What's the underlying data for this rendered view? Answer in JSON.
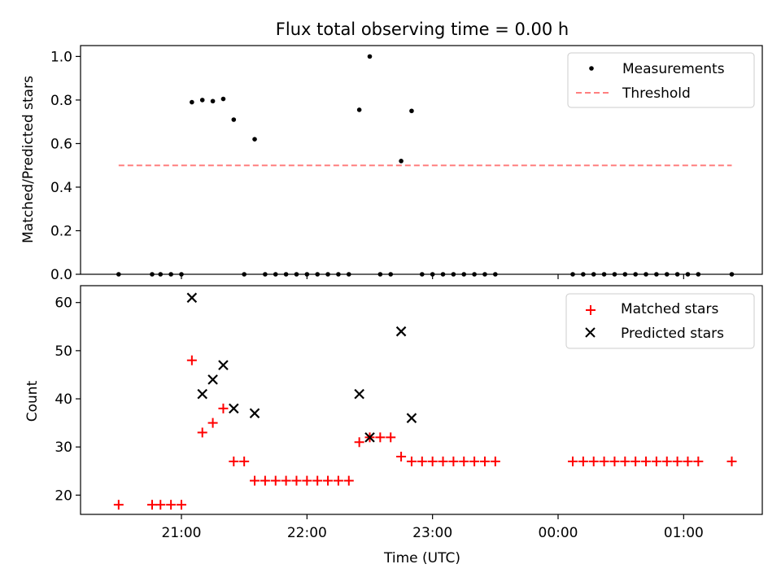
{
  "figure_title": "Flux total observing time = 0.00 h",
  "xlabel": "Time (UTC)",
  "x_tick_labels": [
    "21:00",
    "22:00",
    "23:00",
    "00:00",
    "01:00"
  ],
  "colors": {
    "matched": "#ff0000",
    "predicted": "#000000",
    "measurement": "#000000",
    "threshold": "#ff7f7f"
  },
  "chart_data": [
    {
      "type": "scatter",
      "panel": "top",
      "title": "Flux total observing time = 0.00 h",
      "xlabel": "",
      "ylabel": "Matched/Predicted stars",
      "x_unit": "time of day (UTC), continues past midnight",
      "ylim": [
        0,
        1.05
      ],
      "yticks": [
        "0.0",
        "0.2",
        "0.4",
        "0.6",
        "0.8",
        "1.0"
      ],
      "legend_position": "upper right",
      "legend": [
        "Measurements",
        "Threshold"
      ],
      "series": [
        {
          "name": "Measurements",
          "marker": "dot",
          "points": [
            [
              "20:30",
              0.0
            ],
            [
              "20:46",
              0.0
            ],
            [
              "20:50",
              0.0
            ],
            [
              "20:55",
              0.0
            ],
            [
              "21:00",
              0.0
            ],
            [
              "21:05",
              0.79
            ],
            [
              "21:10",
              0.8
            ],
            [
              "21:15",
              0.795
            ],
            [
              "21:20",
              0.805
            ],
            [
              "21:25",
              0.71
            ],
            [
              "21:30",
              0.0
            ],
            [
              "21:35",
              0.62
            ],
            [
              "21:40",
              0.0
            ],
            [
              "21:45",
              0.0
            ],
            [
              "21:50",
              0.0
            ],
            [
              "21:55",
              0.0
            ],
            [
              "22:00",
              0.0
            ],
            [
              "22:05",
              0.0
            ],
            [
              "22:10",
              0.0
            ],
            [
              "22:15",
              0.0
            ],
            [
              "22:20",
              0.0
            ],
            [
              "22:25",
              0.755
            ],
            [
              "22:30",
              1.0
            ],
            [
              "22:35",
              0.0
            ],
            [
              "22:40",
              0.0
            ],
            [
              "22:45",
              0.52
            ],
            [
              "22:50",
              0.75
            ],
            [
              "22:55",
              0.0
            ],
            [
              "23:00",
              0.0
            ],
            [
              "23:05",
              0.0
            ],
            [
              "23:10",
              0.0
            ],
            [
              "23:15",
              0.0
            ],
            [
              "23:20",
              0.0
            ],
            [
              "23:25",
              0.0
            ],
            [
              "23:30",
              0.0
            ],
            [
              "00:07",
              0.0
            ],
            [
              "00:12",
              0.0
            ],
            [
              "00:17",
              0.0
            ],
            [
              "00:22",
              0.0
            ],
            [
              "00:27",
              0.0
            ],
            [
              "00:32",
              0.0
            ],
            [
              "00:37",
              0.0
            ],
            [
              "00:42",
              0.0
            ],
            [
              "00:47",
              0.0
            ],
            [
              "00:52",
              0.0
            ],
            [
              "00:57",
              0.0
            ],
            [
              "01:02",
              0.0
            ],
            [
              "01:07",
              0.0
            ],
            [
              "01:23",
              0.0
            ]
          ]
        },
        {
          "name": "Threshold",
          "style": "dashed",
          "points": [
            [
              "20:30",
              0.5
            ],
            [
              "01:23",
              0.5
            ]
          ]
        }
      ]
    },
    {
      "type": "scatter",
      "panel": "bottom",
      "xlabel": "Time (UTC)",
      "ylabel": "Count",
      "x_unit": "time of day (UTC), continues past midnight",
      "ylim": [
        16,
        63.5
      ],
      "yticks": [
        "20",
        "30",
        "40",
        "50",
        "60"
      ],
      "legend_position": "upper right",
      "legend": [
        "Matched stars",
        "Predicted stars"
      ],
      "series": [
        {
          "name": "Matched stars",
          "marker": "plus",
          "points": [
            [
              "20:30",
              18
            ],
            [
              "20:46",
              18
            ],
            [
              "20:50",
              18
            ],
            [
              "20:55",
              18
            ],
            [
              "21:00",
              18
            ],
            [
              "21:05",
              48
            ],
            [
              "21:10",
              33
            ],
            [
              "21:15",
              35
            ],
            [
              "21:20",
              38
            ],
            [
              "21:25",
              27
            ],
            [
              "21:30",
              27
            ],
            [
              "21:35",
              23
            ],
            [
              "21:40",
              23
            ],
            [
              "21:45",
              23
            ],
            [
              "21:50",
              23
            ],
            [
              "21:55",
              23
            ],
            [
              "22:00",
              23
            ],
            [
              "22:05",
              23
            ],
            [
              "22:10",
              23
            ],
            [
              "22:15",
              23
            ],
            [
              "22:20",
              23
            ],
            [
              "22:25",
              31
            ],
            [
              "22:30",
              32
            ],
            [
              "22:35",
              32
            ],
            [
              "22:40",
              32
            ],
            [
              "22:45",
              28
            ],
            [
              "22:50",
              27
            ],
            [
              "22:55",
              27
            ],
            [
              "23:00",
              27
            ],
            [
              "23:05",
              27
            ],
            [
              "23:10",
              27
            ],
            [
              "23:15",
              27
            ],
            [
              "23:20",
              27
            ],
            [
              "23:25",
              27
            ],
            [
              "23:30",
              27
            ],
            [
              "00:07",
              27
            ],
            [
              "00:12",
              27
            ],
            [
              "00:17",
              27
            ],
            [
              "00:22",
              27
            ],
            [
              "00:27",
              27
            ],
            [
              "00:32",
              27
            ],
            [
              "00:37",
              27
            ],
            [
              "00:42",
              27
            ],
            [
              "00:47",
              27
            ],
            [
              "00:52",
              27
            ],
            [
              "00:57",
              27
            ],
            [
              "01:02",
              27
            ],
            [
              "01:07",
              27
            ],
            [
              "01:23",
              27
            ]
          ]
        },
        {
          "name": "Predicted stars",
          "marker": "x",
          "points": [
            [
              "21:05",
              61
            ],
            [
              "21:10",
              41
            ],
            [
              "21:15",
              44
            ],
            [
              "21:20",
              47
            ],
            [
              "21:25",
              38
            ],
            [
              "21:35",
              37
            ],
            [
              "22:25",
              41
            ],
            [
              "22:30",
              32
            ],
            [
              "22:45",
              54
            ],
            [
              "22:50",
              36
            ]
          ]
        }
      ]
    }
  ]
}
